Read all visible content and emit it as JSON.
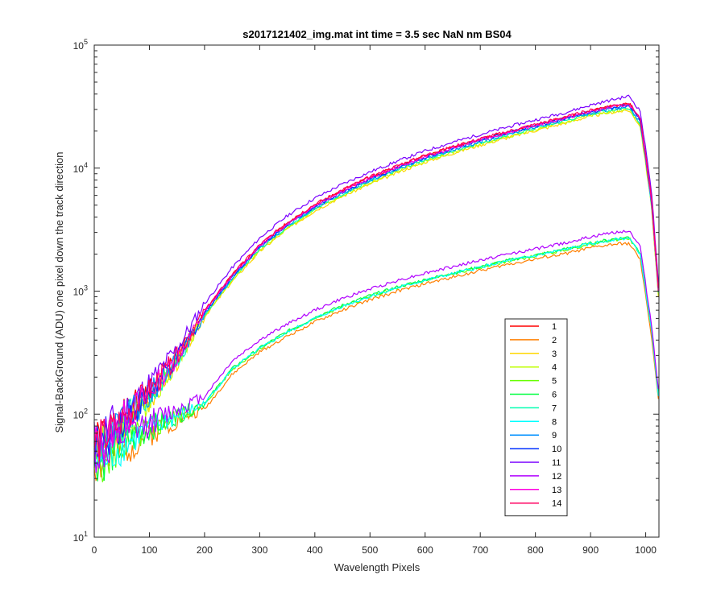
{
  "chart_data": {
    "type": "line",
    "title": "s2017121402_img.mat int time = 3.5 sec  NaN nm BS04",
    "xlabel": "Wavelength Pixels",
    "ylabel": "Signal-BackGround (ADU) one pixel down the track direction",
    "xlim": [
      0,
      1024
    ],
    "ylim": [
      10,
      100000
    ],
    "yscale": "log",
    "grid": false,
    "legend_position": "lower-right",
    "x_ticks": [
      "0",
      "100",
      "200",
      "300",
      "400",
      "500",
      "600",
      "700",
      "800",
      "900",
      "1000"
    ],
    "x_tick_values": [
      0,
      100,
      200,
      300,
      400,
      500,
      600,
      700,
      800,
      900,
      1000
    ],
    "y_tick_values": [
      10,
      100,
      1000,
      10000,
      100000
    ],
    "y_tick_labels": [
      {
        "base": "10",
        "exp": "1"
      },
      {
        "base": "10",
        "exp": "2"
      },
      {
        "base": "10",
        "exp": "3"
      },
      {
        "base": "10",
        "exp": "4"
      },
      {
        "base": "10",
        "exp": "5"
      }
    ],
    "x": [
      0,
      20,
      50,
      100,
      150,
      200,
      250,
      300,
      350,
      400,
      450,
      500,
      550,
      600,
      650,
      700,
      750,
      800,
      850,
      900,
      940,
      970,
      990,
      1010,
      1024
    ],
    "series": [
      {
        "name": "1",
        "color": "#ff0000",
        "group": "upper",
        "values": [
          55,
          65,
          90,
          150,
          290,
          680,
          1350,
          2350,
          3600,
          5000,
          6600,
          8400,
          10400,
          12600,
          14800,
          17200,
          19700,
          22500,
          25500,
          29000,
          32000,
          33500,
          25000,
          6000,
          900
        ]
      },
      {
        "name": "2",
        "color": "#ff7f00",
        "group": "lower",
        "values": [
          40,
          40,
          50,
          70,
          90,
          110,
          210,
          320,
          430,
          560,
          700,
          850,
          1000,
          1150,
          1300,
          1470,
          1650,
          1820,
          2000,
          2250,
          2400,
          2450,
          1800,
          450,
          120
        ]
      },
      {
        "name": "3",
        "color": "#ffd700",
        "group": "upper",
        "values": [
          50,
          58,
          80,
          135,
          265,
          620,
          1200,
          2100,
          3200,
          4500,
          5900,
          7400,
          9200,
          11200,
          13200,
          15400,
          17700,
          20200,
          23000,
          26500,
          28500,
          29500,
          22000,
          5200,
          800
        ]
      },
      {
        "name": "4",
        "color": "#bfff00",
        "group": "upper",
        "values": [
          50,
          58,
          80,
          135,
          265,
          630,
          1230,
          2150,
          3250,
          4600,
          6000,
          7600,
          9400,
          11400,
          13400,
          15700,
          18000,
          20600,
          23400,
          27000,
          29000,
          30000,
          22500,
          5300,
          800
        ]
      },
      {
        "name": "5",
        "color": "#66ff00",
        "group": "lower",
        "values": [
          42,
          42,
          55,
          75,
          95,
          120,
          230,
          340,
          460,
          600,
          750,
          900,
          1060,
          1220,
          1380,
          1560,
          1750,
          1930,
          2150,
          2400,
          2600,
          2700,
          2000,
          500,
          130
        ]
      },
      {
        "name": "6",
        "color": "#00ff40",
        "group": "lower",
        "values": [
          43,
          43,
          56,
          77,
          97,
          123,
          235,
          345,
          470,
          610,
          765,
          920,
          1080,
          1240,
          1400,
          1580,
          1780,
          1960,
          2180,
          2450,
          2650,
          2750,
          2050,
          510,
          135
        ]
      },
      {
        "name": "7",
        "color": "#00ffb0",
        "group": "upper",
        "values": [
          52,
          60,
          82,
          138,
          270,
          640,
          1260,
          2200,
          3350,
          4700,
          6150,
          7800,
          9650,
          11700,
          13800,
          16100,
          18500,
          21100,
          24000,
          27600,
          29800,
          31000,
          23200,
          5500,
          850
        ]
      },
      {
        "name": "8",
        "color": "#00ffff",
        "group": "lower",
        "values": [
          42,
          42,
          55,
          76,
          96,
          122,
          232,
          340,
          462,
          600,
          752,
          905,
          1065,
          1225,
          1385,
          1565,
          1760,
          1940,
          2160,
          2420,
          2620,
          2700,
          2000,
          500,
          130
        ]
      },
      {
        "name": "9",
        "color": "#0090ff",
        "group": "upper",
        "values": [
          52,
          61,
          84,
          140,
          275,
          650,
          1280,
          2240,
          3400,
          4780,
          6250,
          7900,
          9800,
          11900,
          14000,
          16400,
          18800,
          21500,
          24500,
          28000,
          30300,
          31500,
          23500,
          5600,
          860
        ]
      },
      {
        "name": "10",
        "color": "#0030ff",
        "group": "upper",
        "values": [
          54,
          63,
          86,
          145,
          282,
          665,
          1310,
          2290,
          3480,
          4880,
          6400,
          8100,
          10050,
          12200,
          14350,
          16800,
          19300,
          22000,
          25000,
          28700,
          31000,
          32500,
          24300,
          5800,
          880
        ]
      },
      {
        "name": "11",
        "color": "#7a00ff",
        "group": "upper",
        "values": [
          60,
          72,
          100,
          175,
          340,
          790,
          1550,
          2700,
          4100,
          5700,
          7400,
          9300,
          11400,
          13800,
          16200,
          18800,
          21600,
          24700,
          28000,
          32500,
          36000,
          38500,
          29000,
          7000,
          1000
        ]
      },
      {
        "name": "12",
        "color": "#b000ff",
        "group": "lower",
        "values": [
          48,
          48,
          62,
          85,
          110,
          140,
          270,
          400,
          540,
          700,
          870,
          1040,
          1220,
          1400,
          1580,
          1780,
          2000,
          2200,
          2450,
          2750,
          3000,
          3100,
          2300,
          560,
          145
        ]
      },
      {
        "name": "13",
        "color": "#ff00e0",
        "group": "upper",
        "values": [
          55,
          64,
          88,
          148,
          288,
          675,
          1330,
          2320,
          3520,
          4950,
          6500,
          8250,
          10200,
          12350,
          14500,
          16950,
          19450,
          22200,
          25200,
          28800,
          31500,
          33000,
          24700,
          5900,
          890
        ]
      },
      {
        "name": "14",
        "color": "#ff0060",
        "group": "upper",
        "values": [
          56,
          66,
          90,
          152,
          295,
          690,
          1360,
          2380,
          3620,
          5080,
          6680,
          8480,
          10480,
          12680,
          14900,
          17350,
          19900,
          22700,
          25800,
          29500,
          32300,
          34000,
          25300,
          6100,
          910
        ]
      }
    ]
  }
}
